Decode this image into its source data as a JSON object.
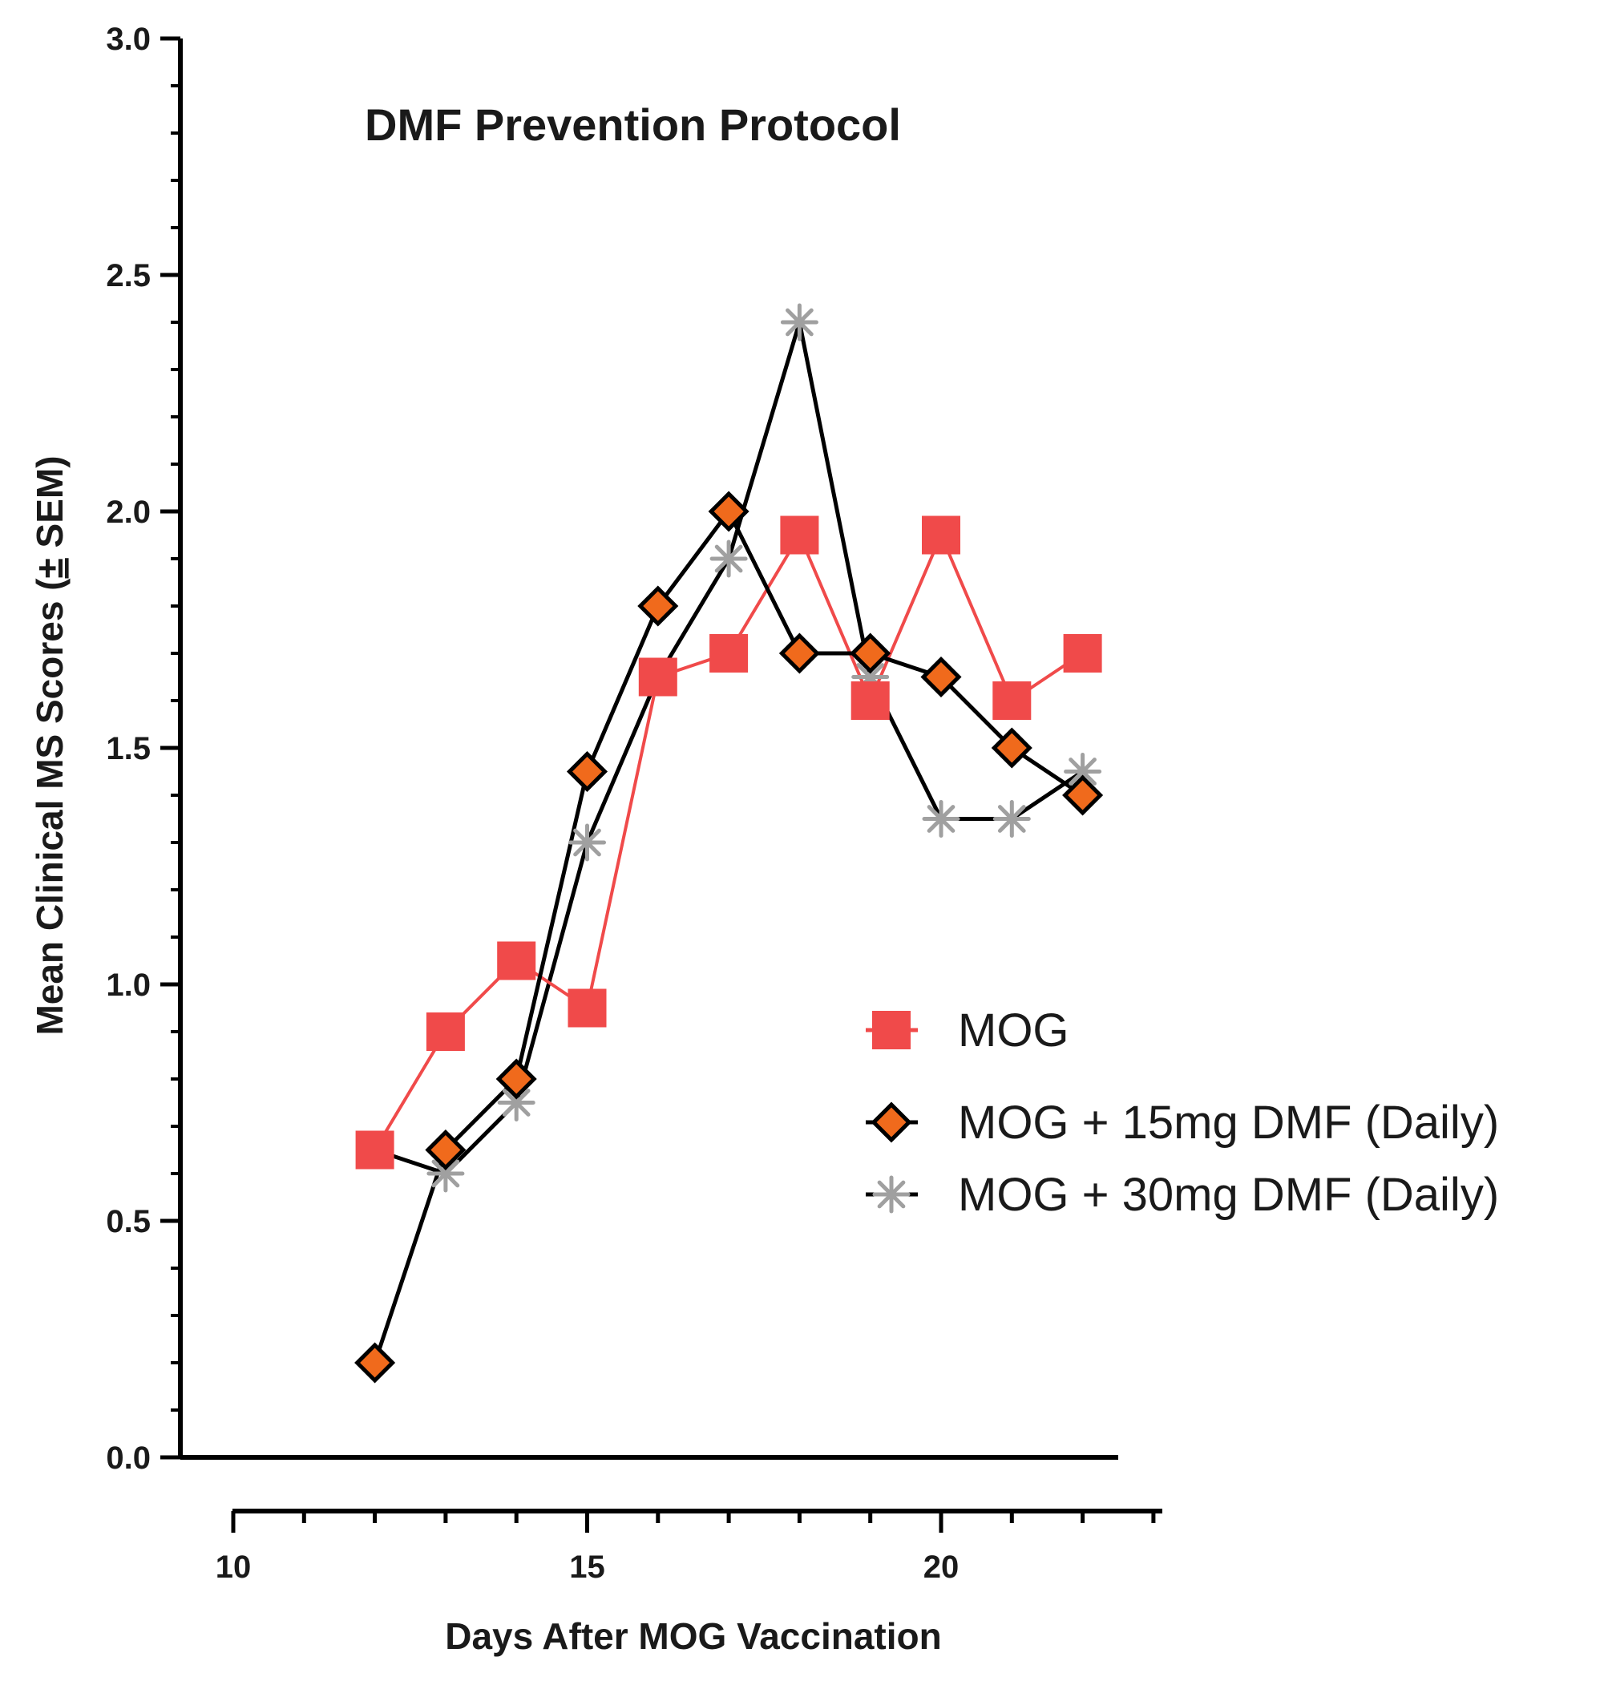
{
  "chart_data": {
    "type": "line",
    "title": "DMF Prevention Protocol",
    "xlabel": "Days After MOG Vaccination",
    "ylabel_main": "Mean Clinical MS Scores (",
    "ylabel_pm": "±",
    "ylabel_tail": " SEM)",
    "xlim": [
      10,
      23
    ],
    "ylim": [
      0,
      3
    ],
    "x_ticks": [
      10,
      15,
      20
    ],
    "y_ticks": [
      0.0,
      0.5,
      1.0,
      1.5,
      2.0,
      2.5,
      3.0
    ],
    "y_tick_labels": [
      "0.0",
      "0.5",
      "1.0",
      "1.5",
      "2.0",
      "2.5",
      "3.0"
    ],
    "x": [
      12,
      13,
      14,
      15,
      16,
      17,
      18,
      19,
      20,
      21,
      22
    ],
    "series": [
      {
        "name": "MOG",
        "marker": "square",
        "color": "#f04a4a",
        "values": [
          0.65,
          0.9,
          1.05,
          0.95,
          1.65,
          1.7,
          1.95,
          1.6,
          1.95,
          1.6,
          1.7
        ]
      },
      {
        "name": "MOG + 15mg DMF (Daily)",
        "marker": "diamond",
        "color": "#000000",
        "marker_fill": "#f06a1c",
        "values": [
          0.2,
          0.65,
          0.8,
          1.45,
          1.8,
          2.0,
          1.7,
          1.7,
          1.65,
          1.5,
          1.4
        ]
      },
      {
        "name": "MOG + 30mg DMF (Daily)",
        "marker": "asterisk",
        "color": "#000000",
        "marker_color": "#a0a0a0",
        "values": [
          0.65,
          0.6,
          0.75,
          1.3,
          1.65,
          1.9,
          2.4,
          1.65,
          1.35,
          1.35,
          1.45
        ]
      }
    ],
    "legend_position": "right-middle",
    "grid": false
  }
}
